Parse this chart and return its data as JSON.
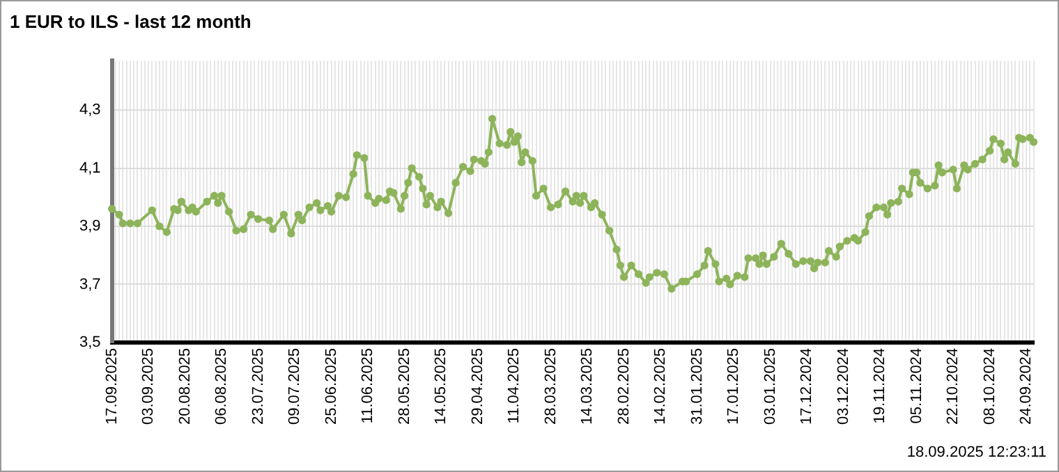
{
  "chart_data": {
    "type": "line",
    "title": "1 EUR to ILS - last 12 month",
    "annotations": [
      "18.09.2025 12:23:11"
    ],
    "categories": [
      "17.09.2025",
      null,
      null,
      null,
      null,
      null,
      null,
      null,
      null,
      null,
      "03.09.2025",
      null,
      null,
      null,
      null,
      null,
      null,
      null,
      null,
      null,
      "20.08.2025",
      null,
      null,
      null,
      null,
      null,
      null,
      null,
      null,
      null,
      "06.08.2025",
      null,
      null,
      null,
      null,
      null,
      null,
      null,
      null,
      null,
      "23.07.2025",
      null,
      null,
      null,
      null,
      null,
      null,
      null,
      null,
      null,
      "09.07.2025",
      null,
      null,
      null,
      null,
      null,
      null,
      null,
      null,
      null,
      "25.06.2025",
      null,
      null,
      null,
      null,
      null,
      null,
      null,
      null,
      null,
      "11.06.2025",
      null,
      null,
      null,
      null,
      null,
      null,
      null,
      null,
      null,
      "28.05.2025",
      null,
      null,
      null,
      null,
      null,
      null,
      null,
      null,
      null,
      "14.05.2025",
      null,
      null,
      null,
      null,
      null,
      null,
      null,
      null,
      null,
      "29.04.2025",
      null,
      null,
      null,
      null,
      null,
      null,
      null,
      null,
      null,
      "11.04.2025",
      null,
      null,
      null,
      null,
      null,
      null,
      null,
      null,
      null,
      "28.03.2025",
      null,
      null,
      null,
      null,
      null,
      null,
      null,
      null,
      null,
      "14.03.2025",
      null,
      null,
      null,
      null,
      null,
      null,
      null,
      null,
      null,
      "28.02.2025",
      null,
      null,
      null,
      null,
      null,
      null,
      null,
      null,
      null,
      "14.02.2025",
      null,
      null,
      null,
      null,
      null,
      null,
      null,
      null,
      null,
      "31.01.2025",
      null,
      null,
      null,
      null,
      null,
      null,
      null,
      null,
      null,
      "17.01.2025",
      null,
      null,
      null,
      null,
      null,
      null,
      null,
      null,
      null,
      "03.01.2025",
      null,
      null,
      null,
      null,
      null,
      null,
      null,
      null,
      null,
      "17.12.2024",
      null,
      null,
      null,
      null,
      null,
      null,
      null,
      null,
      null,
      "03.12.2024",
      null,
      null,
      null,
      null,
      null,
      null,
      null,
      null,
      null,
      "19.11.2024",
      null,
      null,
      null,
      null,
      null,
      null,
      null,
      null,
      null,
      "05.11.2024",
      null,
      null,
      null,
      null,
      null,
      null,
      null,
      null,
      null,
      "22.10.2024",
      null,
      null,
      null,
      null,
      null,
      null,
      null,
      null,
      null,
      "08.10.2024",
      null,
      null,
      null,
      null,
      null,
      null,
      null,
      null,
      null,
      "24.09.2024",
      null,
      null
    ],
    "series": [
      {
        "color": "#8db45a",
        "values": [
          3.96,
          null,
          3.94,
          3.91,
          null,
          3.91,
          null,
          3.91,
          null,
          null,
          null,
          3.955,
          null,
          3.9,
          null,
          3.88,
          null,
          3.96,
          3.955,
          3.985,
          null,
          3.955,
          3.965,
          3.95,
          null,
          null,
          3.985,
          null,
          4.005,
          3.98,
          4.005,
          null,
          3.95,
          null,
          3.885,
          null,
          3.89,
          null,
          3.94,
          null,
          3.925,
          null,
          null,
          3.92,
          3.89,
          null,
          null,
          3.94,
          null,
          3.875,
          null,
          3.94,
          3.92,
          null,
          3.965,
          null,
          3.98,
          3.955,
          null,
          3.97,
          3.95,
          null,
          4.005,
          null,
          4.0,
          null,
          4.08,
          4.145,
          null,
          4.135,
          4.005,
          null,
          3.98,
          3.995,
          null,
          3.99,
          4.02,
          4.015,
          null,
          3.96,
          4.005,
          4.05,
          4.1,
          null,
          4.07,
          4.03,
          3.975,
          4.005,
          null,
          3.965,
          3.985,
          null,
          3.945,
          null,
          4.05,
          null,
          4.105,
          null,
          4.09,
          4.13,
          null,
          4.125,
          4.115,
          4.155,
          4.27,
          null,
          4.185,
          null,
          4.18,
          4.225,
          4.19,
          4.21,
          4.12,
          4.155,
          null,
          4.125,
          4.005,
          null,
          4.03,
          null,
          3.965,
          null,
          3.975,
          null,
          4.02,
          null,
          3.985,
          4.005,
          3.98,
          4.005,
          null,
          3.965,
          3.98,
          null,
          3.94,
          null,
          3.885,
          null,
          3.82,
          3.765,
          3.725,
          null,
          3.765,
          null,
          3.735,
          null,
          3.705,
          3.725,
          null,
          3.74,
          null,
          3.735,
          null,
          3.685,
          null,
          null,
          3.71,
          3.71,
          null,
          null,
          3.735,
          null,
          3.765,
          3.815,
          null,
          3.77,
          3.71,
          null,
          3.72,
          3.7,
          null,
          3.73,
          null,
          3.725,
          3.79,
          null,
          3.79,
          3.77,
          3.8,
          3.77,
          null,
          3.795,
          null,
          3.84,
          null,
          3.805,
          null,
          3.77,
          null,
          3.78,
          null,
          3.78,
          3.755,
          3.775,
          null,
          3.775,
          3.815,
          null,
          3.795,
          3.83,
          null,
          3.85,
          null,
          3.86,
          3.85,
          null,
          3.88,
          3.935,
          null,
          3.965,
          null,
          3.965,
          3.94,
          3.98,
          null,
          3.985,
          4.03,
          null,
          4.01,
          4.085,
          4.085,
          4.05,
          null,
          4.03,
          null,
          4.04,
          4.11,
          4.085,
          null,
          null,
          4.095,
          4.03,
          null,
          4.11,
          4.095,
          null,
          4.115,
          null,
          4.13,
          null,
          4.16,
          4.2,
          null,
          4.185,
          4.13,
          4.155,
          null,
          4.115,
          4.205,
          4.2,
          null,
          4.205,
          4.19
        ]
      }
    ],
    "ylim": [
      3.5,
      4.47
    ],
    "yticks": [
      {
        "value": 3.5,
        "label": "3,5"
      },
      {
        "value": 3.7,
        "label": "3,7"
      },
      {
        "value": 3.9,
        "label": "3,9"
      },
      {
        "value": 4.1,
        "label": "4,1"
      },
      {
        "value": 4.3,
        "label": "4,3"
      }
    ],
    "grid": true,
    "legend": false,
    "marker": "circle",
    "line_style": "solid"
  }
}
